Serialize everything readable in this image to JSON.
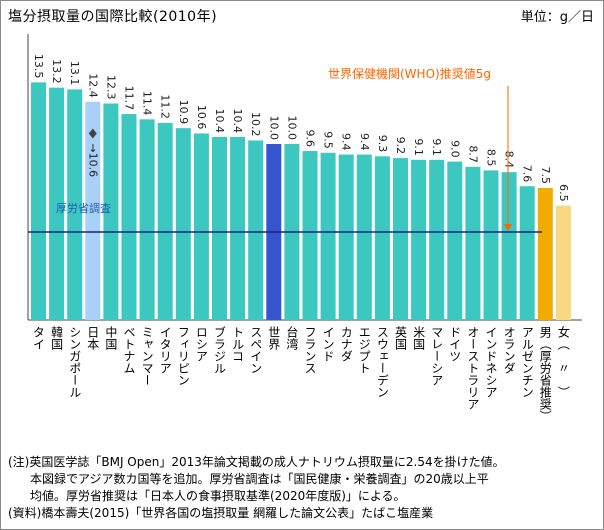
{
  "title": "塩分摂取量の国際比較(2010年)",
  "unit_label": "単位：g／日",
  "chart_data": {
    "type": "bar",
    "title": "塩分摂取量の国際比較(2010年)",
    "unit": "g/日",
    "ylim": [
      0,
      15
    ],
    "categories": [
      "タイ",
      "韓国",
      "シンガポール",
      "日本",
      "中国",
      "ベトナム",
      "ミャンマー",
      "イタリア",
      "フィリピン",
      "ロシア",
      "ブラジル",
      "トルコ",
      "スペイン",
      "世界",
      "台湾",
      "フランス",
      "インド",
      "カナダ",
      "エジプト",
      "スウェーデン",
      "英国",
      "米国",
      "マレーシア",
      "ドイツ",
      "オーストラリア",
      "インドネシア",
      "オランダ",
      "アルゼンチン",
      "男（厚労省推奨）",
      "女（　〃　）"
    ],
    "values": [
      13.5,
      13.2,
      13.1,
      12.4,
      12.3,
      11.7,
      11.4,
      11.2,
      10.9,
      10.6,
      10.4,
      10.4,
      10.2,
      10.0,
      10.0,
      9.6,
      9.5,
      9.4,
      9.4,
      9.3,
      9.2,
      9.1,
      9.1,
      9.0,
      8.7,
      8.5,
      8.4,
      7.6,
      7.5,
      6.5
    ],
    "value_labels": [
      "13.5",
      "13.2",
      "13.1",
      "12.4",
      "12.3",
      "11.7",
      "11.4",
      "11.2",
      "10.9",
      "10.6",
      "10.4",
      "10.4",
      "10.2",
      "10.0",
      "10.0",
      "9.6",
      "9.5",
      "9.4",
      "9.4",
      "9.3",
      "9.2",
      "9.1",
      "9.1",
      "9.0",
      "8.7",
      "8.5",
      "8.4",
      "7.6",
      "7.5",
      "6.5"
    ],
    "bar_colors": {
      "default": "#3cc8c0",
      "world": "#3555d0",
      "japan_survey": "#a8d0f8",
      "recommend_male": "#f0ac00",
      "recommend_female": "#f8d880"
    },
    "bar_color_keys": [
      "default",
      "default",
      "default",
      "japan_survey",
      "default",
      "default",
      "default",
      "default",
      "default",
      "default",
      "default",
      "default",
      "default",
      "world",
      "default",
      "default",
      "default",
      "default",
      "default",
      "default",
      "default",
      "default",
      "default",
      "default",
      "default",
      "default",
      "default",
      "default",
      "recommend_male",
      "recommend_female"
    ],
    "japan_survey": {
      "value": 10.6,
      "label": "→10.6",
      "source_label": "厚労省調査",
      "marker": "diamond"
    },
    "reference_line": {
      "value": 5,
      "label": "世界保健機関(WHO)推奨値5g",
      "color": "#1a237e",
      "label_color": "#ff6600"
    }
  },
  "notes": [
    "(注)英国医学誌「BMJ Open」2013年論文掲載の成人ナトリウム摂取量に2.54を掛けた値。",
    "本図録でアジア数カ国等を追加。厚労省調査は「国民健康・栄養調査」の20歳以上平",
    "均値。厚労省推奨は「日本人の食事摂取基準(2020年度版)」による。",
    "(資料)橋本壽夫(2015)「世界各国の塩摂取量 網羅した論文公表」たばこ塩産業"
  ]
}
